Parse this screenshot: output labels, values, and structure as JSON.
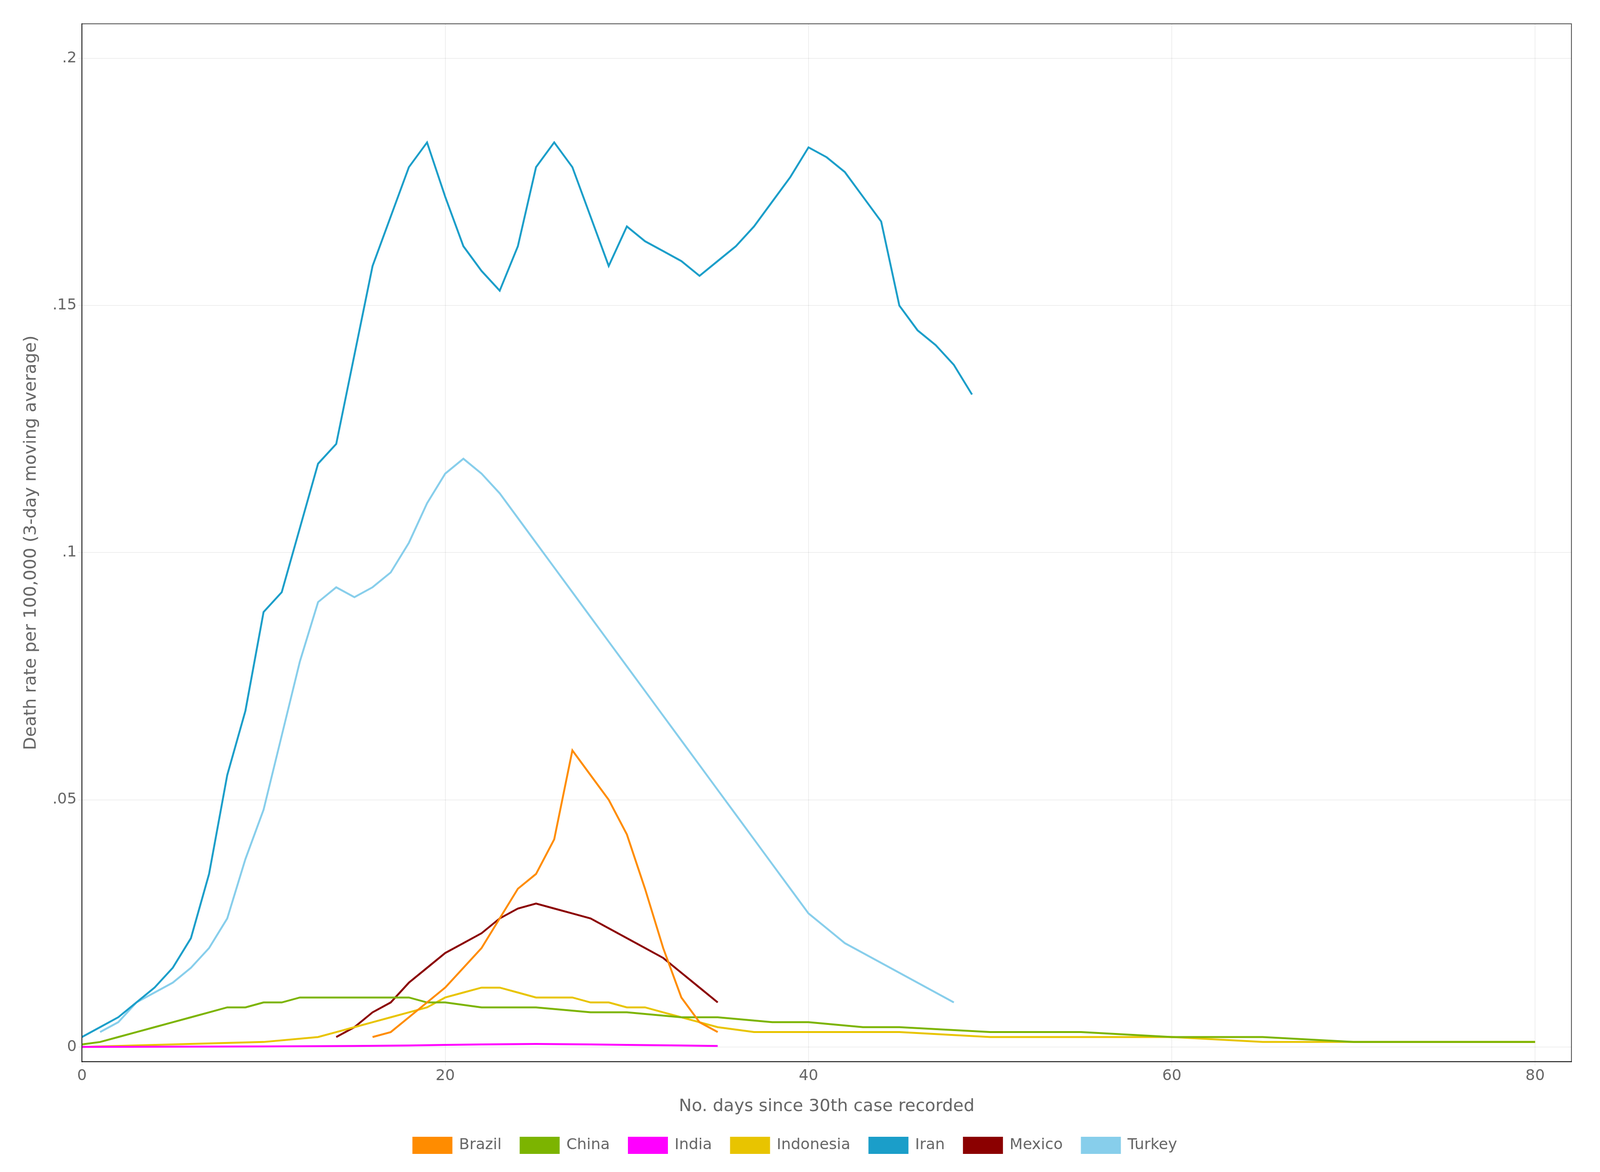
{
  "chart_data": {
    "type": "line",
    "xlabel": "No. days since 30th case recorded",
    "ylabel": "Death rate per 100,000 (3-day moving average)",
    "xlim": [
      0,
      82
    ],
    "ylim": [
      -0.003,
      0.207
    ],
    "xticks": [
      0,
      20,
      40,
      60,
      80
    ],
    "yticks": [
      0,
      {
        "value": 0.05,
        "label": ".05"
      },
      {
        "value": 0.1,
        "label": ".1"
      },
      {
        "value": 0.15,
        "label": ".15"
      },
      {
        "value": 0.2,
        "label": ".2"
      }
    ],
    "grid": true,
    "legend": "bottom",
    "series": [
      {
        "name": "Brazil",
        "color": "#FF8C00",
        "x": [
          16,
          17,
          18,
          19,
          20,
          21,
          22,
          23,
          24,
          25,
          26,
          27,
          28,
          29,
          30,
          31,
          32,
          33,
          34,
          35
        ],
        "values": [
          0.002,
          0.003,
          0.006,
          0.009,
          0.012,
          0.016,
          0.02,
          0.026,
          0.032,
          0.035,
          0.042,
          0.06,
          0.055,
          0.05,
          0.043,
          0.032,
          0.02,
          0.01,
          0.005,
          0.003
        ]
      },
      {
        "name": "China",
        "color": "#7CB400",
        "x": [
          0,
          1,
          2,
          3,
          4,
          5,
          6,
          7,
          8,
          9,
          10,
          11,
          12,
          13,
          14,
          15,
          16,
          17,
          18,
          19,
          20,
          22,
          25,
          28,
          30,
          33,
          35,
          38,
          40,
          43,
          45,
          50,
          55,
          60,
          65,
          70,
          75,
          80
        ],
        "values": [
          0.0005,
          0.001,
          0.002,
          0.003,
          0.004,
          0.005,
          0.006,
          0.007,
          0.008,
          0.008,
          0.009,
          0.009,
          0.01,
          0.01,
          0.01,
          0.01,
          0.01,
          0.01,
          0.01,
          0.009,
          0.009,
          0.008,
          0.008,
          0.007,
          0.007,
          0.006,
          0.006,
          0.005,
          0.005,
          0.004,
          0.004,
          0.003,
          0.003,
          0.002,
          0.002,
          0.001,
          0.001,
          0.001
        ]
      },
      {
        "name": "India",
        "color": "#FF00FF",
        "x": [
          0,
          5,
          10,
          15,
          18,
          20,
          22,
          25,
          28,
          30,
          33,
          35
        ],
        "values": [
          0.0,
          5e-05,
          0.0001,
          0.0002,
          0.0003,
          0.0004,
          0.0005,
          0.0006,
          0.0005,
          0.0004,
          0.0003,
          0.0002
        ]
      },
      {
        "name": "Indonesia",
        "color": "#E8C400",
        "x": [
          0,
          5,
          10,
          13,
          14,
          15,
          16,
          17,
          18,
          19,
          20,
          21,
          22,
          23,
          24,
          25,
          26,
          27,
          28,
          29,
          30,
          31,
          32,
          33,
          34,
          35,
          37,
          40,
          45,
          50,
          55,
          60,
          65,
          70,
          75,
          80
        ],
        "values": [
          0.0,
          0.0005,
          0.001,
          0.002,
          0.003,
          0.004,
          0.005,
          0.006,
          0.007,
          0.008,
          0.01,
          0.011,
          0.012,
          0.012,
          0.011,
          0.01,
          0.01,
          0.01,
          0.009,
          0.009,
          0.008,
          0.008,
          0.007,
          0.006,
          0.005,
          0.004,
          0.003,
          0.003,
          0.003,
          0.002,
          0.002,
          0.002,
          0.001,
          0.001,
          0.001,
          0.001
        ]
      },
      {
        "name": "Iran",
        "color": "#1B9EC9",
        "x": [
          0,
          1,
          2,
          3,
          4,
          5,
          6,
          7,
          8,
          9,
          10,
          11,
          12,
          13,
          14,
          15,
          16,
          17,
          18,
          19,
          20,
          21,
          22,
          23,
          24,
          25,
          26,
          27,
          28,
          29,
          30,
          31,
          32,
          33,
          34,
          35,
          36,
          37,
          38,
          39,
          40,
          41,
          42,
          43,
          44,
          45,
          46,
          47,
          48,
          49
        ],
        "values": [
          0.002,
          0.004,
          0.006,
          0.009,
          0.012,
          0.016,
          0.022,
          0.035,
          0.055,
          0.068,
          0.088,
          0.092,
          0.105,
          0.118,
          0.122,
          0.14,
          0.158,
          0.168,
          0.178,
          0.183,
          0.172,
          0.162,
          0.157,
          0.153,
          0.162,
          0.178,
          0.183,
          0.178,
          0.168,
          0.158,
          0.166,
          0.163,
          0.161,
          0.159,
          0.156,
          0.159,
          0.162,
          0.166,
          0.171,
          0.176,
          0.182,
          0.18,
          0.177,
          0.172,
          0.167,
          0.15,
          0.145,
          0.142,
          0.138,
          0.132
        ]
      },
      {
        "name": "Mexico",
        "color": "#8B0000",
        "x": [
          14,
          15,
          16,
          17,
          18,
          19,
          20,
          21,
          22,
          23,
          24,
          25,
          26,
          27,
          28,
          29,
          30,
          31,
          32,
          33,
          34,
          35
        ],
        "values": [
          0.002,
          0.004,
          0.007,
          0.009,
          0.013,
          0.016,
          0.019,
          0.021,
          0.023,
          0.026,
          0.028,
          0.029,
          0.028,
          0.027,
          0.026,
          0.024,
          0.022,
          0.02,
          0.018,
          0.015,
          0.012,
          0.009
        ]
      },
      {
        "name": "Turkey",
        "color": "#87CEEB",
        "x": [
          1,
          2,
          3,
          4,
          5,
          6,
          7,
          8,
          9,
          10,
          11,
          12,
          13,
          14,
          15,
          16,
          17,
          18,
          19,
          20,
          21,
          22,
          23,
          24,
          25,
          26,
          27,
          28,
          29,
          30,
          31,
          32,
          33,
          34,
          35,
          36,
          37,
          38,
          39,
          40,
          41,
          42,
          43,
          44,
          45,
          46,
          47,
          48
        ],
        "values": [
          0.003,
          0.005,
          0.009,
          0.011,
          0.013,
          0.016,
          0.02,
          0.026,
          0.038,
          0.048,
          0.063,
          0.078,
          0.09,
          0.093,
          0.091,
          0.093,
          0.096,
          0.102,
          0.11,
          0.116,
          0.119,
          0.116,
          0.112,
          0.107,
          0.102,
          0.097,
          0.092,
          0.087,
          0.082,
          0.077,
          0.072,
          0.067,
          0.062,
          0.057,
          0.052,
          0.047,
          0.042,
          0.037,
          0.032,
          0.027,
          0.024,
          0.021,
          0.019,
          0.017,
          0.015,
          0.013,
          0.011,
          0.009
        ]
      }
    ]
  }
}
